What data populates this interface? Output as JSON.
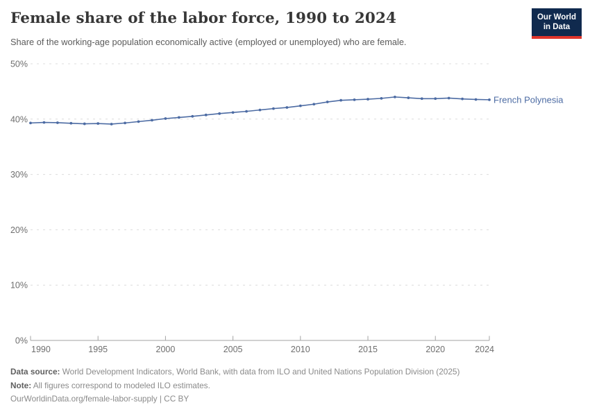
{
  "header": {
    "title": "Female share of the labor force, 1990 to 2024",
    "subtitle": "Share of the working-age population economically active (employed or unemployed) who are female.",
    "logo_line1": "Our World",
    "logo_line2": "in Data"
  },
  "chart_data": {
    "type": "line",
    "title": "Female share of the labor force, 1990 to 2024",
    "xlabel": "",
    "ylabel": "",
    "xlim": [
      1990,
      2024
    ],
    "ylim": [
      0,
      50
    ],
    "xticks": [
      1990,
      1995,
      2000,
      2005,
      2010,
      2015,
      2020,
      2024
    ],
    "yticks": [
      0,
      10,
      20,
      30,
      40,
      50
    ],
    "ytick_suffix": "%",
    "grid": "horizontal-dashed",
    "legend_position": "end-of-line-label",
    "series": [
      {
        "name": "French Polynesia",
        "x": [
          1990,
          1991,
          1992,
          1993,
          1994,
          1995,
          1996,
          1997,
          1998,
          1999,
          2000,
          2001,
          2002,
          2003,
          2004,
          2005,
          2006,
          2007,
          2008,
          2009,
          2010,
          2011,
          2012,
          2013,
          2014,
          2015,
          2016,
          2017,
          2018,
          2019,
          2020,
          2021,
          2022,
          2023,
          2024
        ],
        "values": [
          39.3,
          39.4,
          39.35,
          39.25,
          39.15,
          39.2,
          39.1,
          39.3,
          39.55,
          39.8,
          40.1,
          40.3,
          40.5,
          40.75,
          41.0,
          41.2,
          41.4,
          41.65,
          41.9,
          42.1,
          42.4,
          42.7,
          43.1,
          43.4,
          43.5,
          43.6,
          43.75,
          44.0,
          43.85,
          43.7,
          43.7,
          43.8,
          43.65,
          43.55,
          43.5
        ]
      }
    ]
  },
  "footer": {
    "source_label": "Data source:",
    "source_text": " World Development Indicators, World Bank, with data from ILO and United Nations Population Division (2025)",
    "note_label": "Note:",
    "note_text": " All figures correspond to modeled ILO estimates.",
    "url_text": "OurWorldinData.org/female-labor-supply | CC BY"
  },
  "colors": {
    "line": "#4c6ba3",
    "end_label": "#4c6ba3",
    "grid": "#dcdcdc",
    "axis": "#a3a3a3",
    "tick_label": "#6e6e6e",
    "title": "#373737",
    "subtitle": "#5b5b5b",
    "footer": "#8a8a8a",
    "footer_bold": "#5f5f5f",
    "logo_bg": "#102a4e",
    "logo_stripe": "#e0352b"
  }
}
